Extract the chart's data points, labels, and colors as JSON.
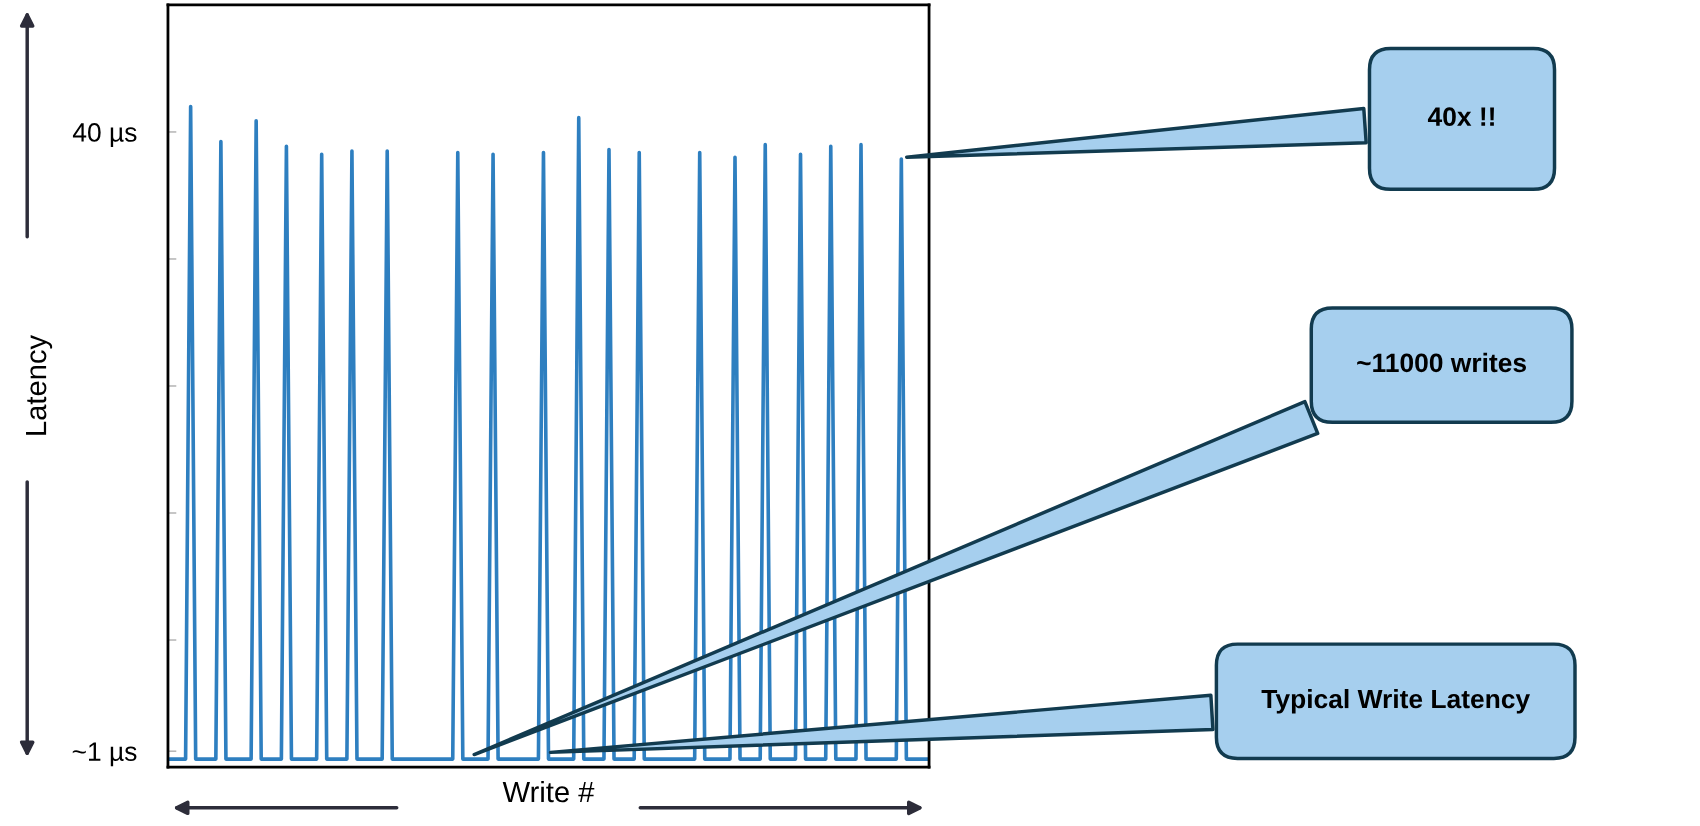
{
  "chart_data": {
    "type": "line",
    "xlabel": "Write #",
    "ylabel": "Latency",
    "categories": [
      null,
      null,
      null,
      null,
      null,
      null,
      null,
      null,
      null,
      null,
      null,
      null,
      null,
      null,
      null,
      null,
      null,
      null,
      null,
      null,
      null,
      null,
      null,
      null,
      null,
      null,
      null,
      null,
      null,
      null,
      null,
      null,
      null,
      null,
      null,
      null,
      null,
      null,
      null,
      null,
      null,
      null,
      null,
      null,
      null,
      null,
      null,
      null,
      null,
      null,
      null,
      null,
      null,
      null,
      null,
      null,
      null,
      null,
      null,
      null,
      null,
      null,
      null,
      null,
      null,
      null,
      null,
      null,
      null,
      null,
      null,
      null,
      null,
      null,
      null,
      null,
      null,
      null,
      null,
      null,
      null,
      null,
      null,
      null,
      null,
      null,
      null,
      null,
      null,
      null,
      null,
      null,
      null,
      null,
      null,
      null,
      null,
      null,
      null,
      null,
      null,
      null,
      null,
      null,
      null,
      null,
      null,
      null,
      null,
      null,
      null,
      null,
      null,
      null,
      null,
      null,
      null,
      null,
      null,
      null,
      null,
      null,
      null,
      null,
      null,
      null,
      null,
      null,
      null,
      null,
      null,
      null,
      null,
      null,
      null,
      null,
      null,
      null,
      null,
      null,
      null,
      null,
      null,
      null,
      null,
      null,
      null,
      null,
      null,
      null,
      null
    ],
    "series": [
      {
        "color": "#2e7fc0",
        "values": [
          0.5,
          0.5,
          0.5,
          0.5,
          41.6,
          0.5,
          0.5,
          0.5,
          0.5,
          0.5,
          39.4,
          0.5,
          0.5,
          0.5,
          0.5,
          0.5,
          0.5,
          40.7,
          0.5,
          0.5,
          0.5,
          0.5,
          0.5,
          39.1,
          0.5,
          0.5,
          0.5,
          0.5,
          0.5,
          0.5,
          38.6,
          0.5,
          0.5,
          0.5,
          0.5,
          0.5,
          38.8,
          0.5,
          0.5,
          0.5,
          0.5,
          0.5,
          0.5,
          38.8,
          0.5,
          0.5,
          0.5,
          0.5,
          0.5,
          0.5,
          0.5,
          0.5,
          0.5,
          0.5,
          0.5,
          0.5,
          0.5,
          38.7,
          0.5,
          0.5,
          0.5,
          0.5,
          0.5,
          0.5,
          38.6,
          0.5,
          0.5,
          0.5,
          0.5,
          0.5,
          0.5,
          0.5,
          0.5,
          0.5,
          38.7,
          0.5,
          0.5,
          0.5,
          0.5,
          0.5,
          0.5,
          40.9,
          0.5,
          0.5,
          0.5,
          0.5,
          0.5,
          38.9,
          0.5,
          0.5,
          0.5,
          0.5,
          0.5,
          38.7,
          0.5,
          0.5,
          0.5,
          0.5,
          0.5,
          0.5,
          0.5,
          0.5,
          0.5,
          0.5,
          0.5,
          38.7,
          0.5,
          0.5,
          0.5,
          0.5,
          0.5,
          0.5,
          38.4,
          0.5,
          0.5,
          0.5,
          0.5,
          0.5,
          39.2,
          0.5,
          0.5,
          0.5,
          0.5,
          0.5,
          0.5,
          38.6,
          0.5,
          0.5,
          0.5,
          0.5,
          0.5,
          39.1,
          0.5,
          0.5,
          0.5,
          0.5,
          0.5,
          39.2,
          0.5,
          0.5,
          0.5,
          0.5,
          0.5,
          0.5,
          0.5,
          38.3,
          0.5,
          0.5,
          0.5,
          0.5,
          0.5
        ]
      }
    ],
    "ylim": [
      0,
      48
    ],
    "yticks": [
      {
        "value": 1,
        "label": "~1 µs"
      },
      {
        "value": 8,
        "label": null
      },
      {
        "value": 16,
        "label": null
      },
      {
        "value": 24,
        "label": null
      },
      {
        "value": 32,
        "label": null
      },
      {
        "value": 40,
        "label": "40 µs"
      }
    ],
    "annotations": [
      "40x !!",
      "~11000 writes",
      "Typical Write Latency"
    ]
  }
}
